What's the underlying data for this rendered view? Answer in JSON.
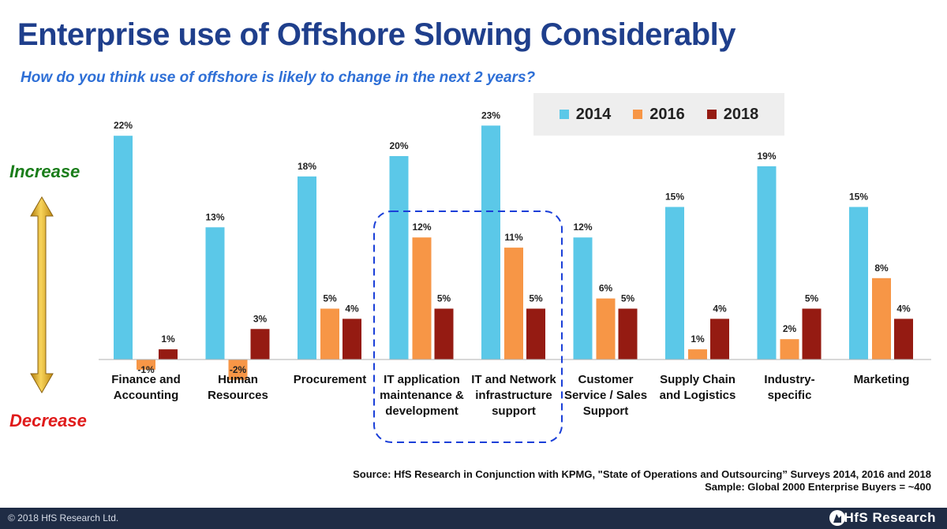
{
  "header": {
    "title": "Enterprise use of Offshore Slowing Considerably",
    "subtitle": "How do you think use of offshore is likely to change in the next 2 years?"
  },
  "axis": {
    "increase_label": "Increase",
    "decrease_label": "Decrease"
  },
  "colors": {
    "s2014": "#5bc8e8",
    "s2016": "#f79646",
    "s2018": "#951b12",
    "highlight": "#1a3fd8"
  },
  "chart_data": {
    "type": "bar",
    "title": "Enterprise use of Offshore Slowing Considerably",
    "subtitle": "How do you think use of offshore is likely to change in the next 2 years?",
    "categories": [
      [
        "Finance and",
        "Accounting"
      ],
      [
        "Human",
        "Resources"
      ],
      [
        "Procurement"
      ],
      [
        "IT application",
        "maintenance &",
        "development"
      ],
      [
        "IT and Network",
        "infrastructure",
        "support"
      ],
      [
        "Customer",
        "Service / Sales",
        "Support"
      ],
      [
        "Supply Chain",
        "and Logistics"
      ],
      [
        "Industry-",
        "specific"
      ],
      [
        "Marketing"
      ]
    ],
    "series": [
      {
        "name": "2014",
        "values": [
          22,
          13,
          18,
          20,
          23,
          12,
          15,
          19,
          15
        ]
      },
      {
        "name": "2016",
        "values": [
          -1,
          -2,
          5,
          12,
          11,
          6,
          1,
          2,
          8
        ]
      },
      {
        "name": "2018",
        "values": [
          1,
          3,
          4,
          5,
          5,
          5,
          4,
          5,
          4
        ]
      }
    ],
    "value_suffix": "%",
    "legend_position": "top-right",
    "highlighted_categories": [
      3,
      4
    ],
    "grid": false
  },
  "source": {
    "line1": "Source: HfS Research in Conjunction with KPMG, \"State of Operations and Outsourcing” Surveys 2014, 2016 and 2018",
    "line2": "Sample: Global 2000 Enterprise Buyers = ~400"
  },
  "footer": {
    "copyright": "© 2018 HfS Research Ltd.",
    "brand": "HfS Research"
  }
}
